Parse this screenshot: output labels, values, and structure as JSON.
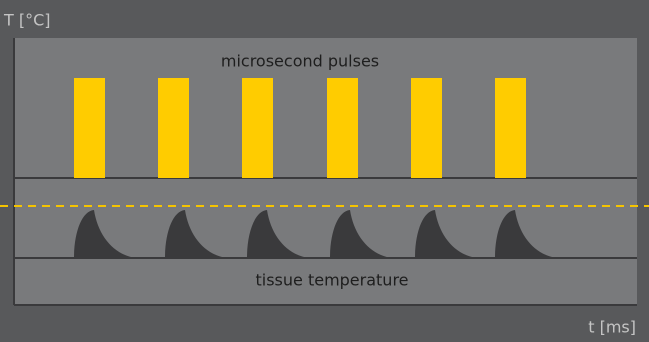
{
  "axes": {
    "y_label": "T [°C]",
    "x_label": "t [ms]"
  },
  "labels": {
    "pulses": "microsecond pulses",
    "temperature": "tissue temperature"
  }
}
